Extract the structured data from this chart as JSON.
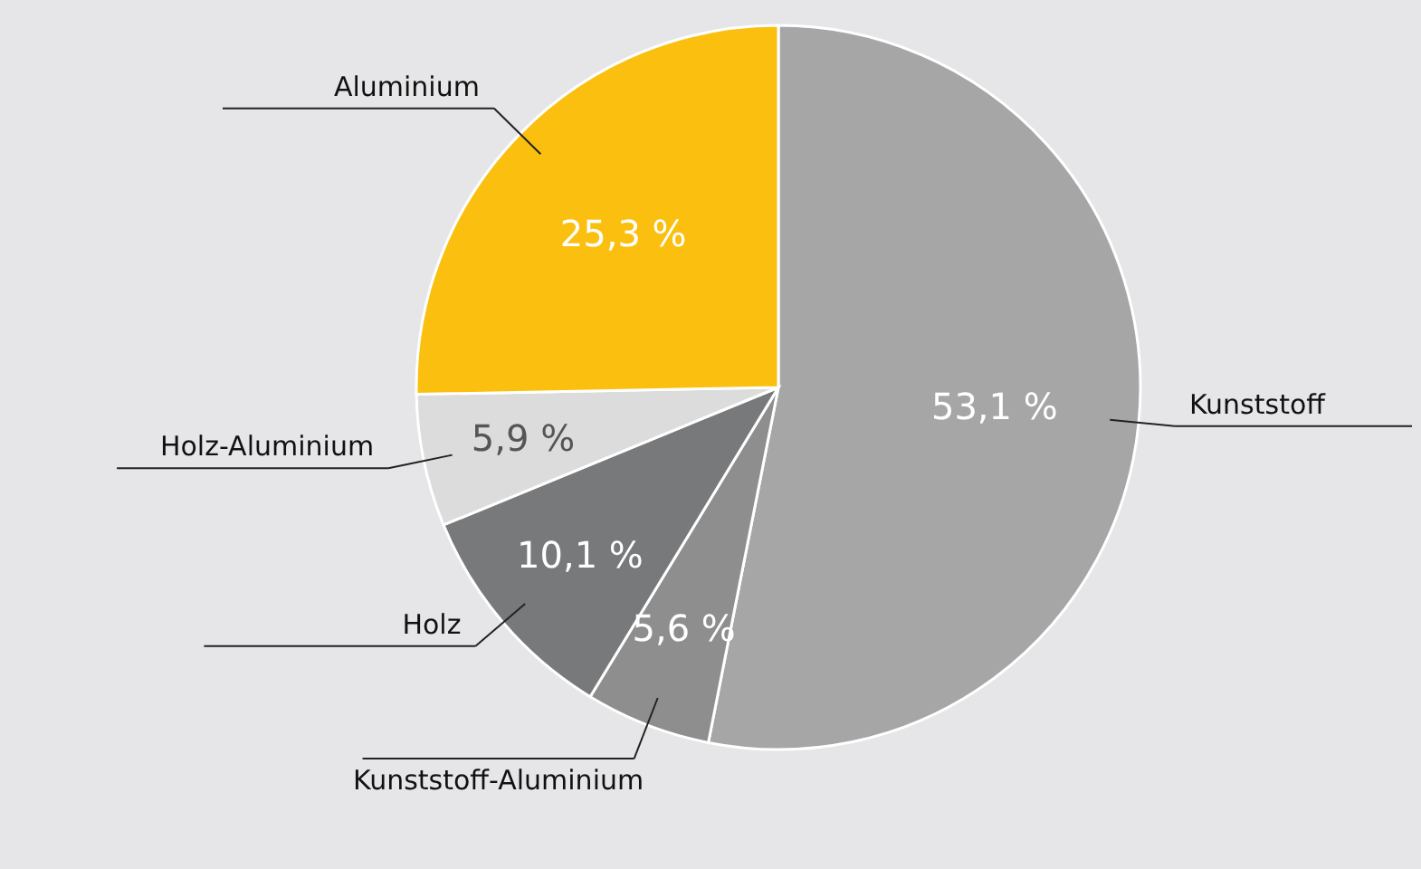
{
  "chart_data": {
    "type": "pie",
    "categories": [
      "Kunststoff",
      "Kunststoff-Aluminium",
      "Holz",
      "Holz-Aluminium",
      "Aluminium"
    ],
    "values": [
      53.1,
      5.6,
      10.1,
      5.9,
      25.3
    ],
    "colors": [
      "#a6a6a6",
      "#8e8e8e",
      "#78797b",
      "#dcdcdc",
      "#fbbf0f"
    ],
    "value_labels": [
      "53,1 %",
      "5,6 %",
      "10,1 %",
      "5,9 %",
      "25,3 %"
    ]
  }
}
